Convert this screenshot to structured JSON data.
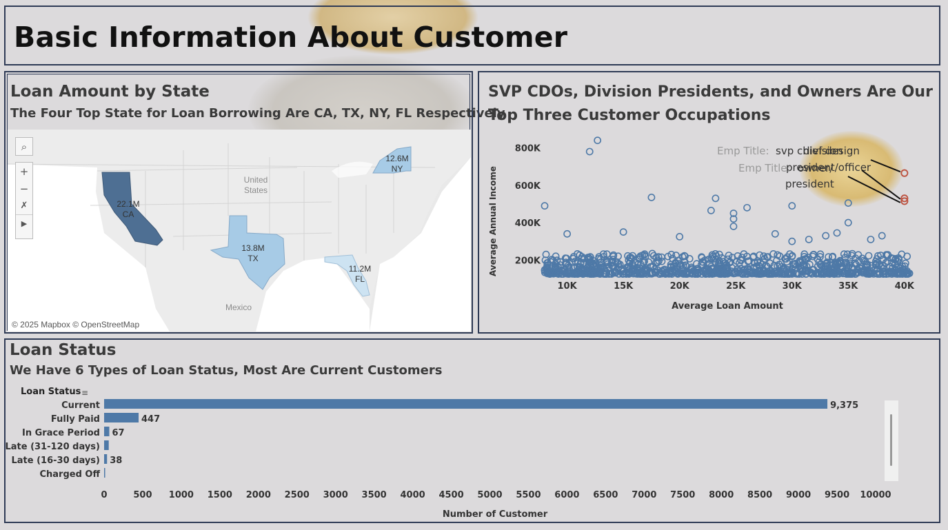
{
  "page_title": "Basic Information About Customer",
  "map": {
    "title": "Loan Amount by State",
    "subtitle": "The Four Top State for Loan Borrowing Are CA, TX, NY, FL Respectively",
    "attribution": "© 2025 Mapbox © OpenStreetMap",
    "place_labels": {
      "us": "United\nStates",
      "mexico": "Mexico"
    },
    "states": [
      {
        "code": "CA",
        "value": "22.1M",
        "color": "#4e6f93"
      },
      {
        "code": "TX",
        "value": "13.8M",
        "color": "#a7cbe6"
      },
      {
        "code": "NY",
        "value": "12.6M",
        "color": "#a7cbe6"
      },
      {
        "code": "FL",
        "value": "11.2M",
        "color": "#cde3f2"
      }
    ],
    "tools": [
      "search-icon",
      "zoom-in-icon",
      "zoom-out-icon",
      "pin-reset-icon",
      "play-icon"
    ]
  },
  "scatter": {
    "title_line1": "SVP CDOs, Division Presidents, and Owners Are Our",
    "title_line2": "Top Three Customer Occupations",
    "annotations": [
      {
        "prefix": "Emp Title:",
        "text": "svp chief design"
      },
      {
        "prefix": "Emp Title:",
        "text": "division"
      },
      {
        "prefix": "",
        "text": "president/officer"
      },
      {
        "prefix": "Emp Title:",
        "text": "owner/"
      },
      {
        "prefix": "",
        "text": "president"
      }
    ]
  },
  "status": {
    "title": "Loan Status",
    "subtitle": "We Have 6 Types of Loan Status, Most Are Current Customers",
    "dimension_header": "Loan Status"
  },
  "chart_data": [
    {
      "type": "scatter",
      "xlabel": "Average Loan Amount",
      "ylabel": "Average Annual Income",
      "xticks": [
        "10K",
        "15K",
        "20K",
        "25K",
        "30K",
        "35K",
        "40K"
      ],
      "yticks": [
        "200K",
        "400K",
        "600K",
        "800K"
      ],
      "xlim": [
        8000,
        40500
      ],
      "ylim": [
        120000,
        850000
      ],
      "series": [
        {
          "values": [
            [
              8000,
              490000
            ],
            [
              12000,
              780000
            ],
            [
              12700,
              840000
            ],
            [
              17500,
              535000
            ],
            [
              22800,
              465000
            ],
            [
              23200,
              530000
            ],
            [
              24800,
              450000
            ],
            [
              24800,
              420000
            ],
            [
              26000,
              480000
            ],
            [
              30000,
              490000
            ],
            [
              35000,
              505000
            ],
            [
              40000,
              665000
            ],
            [
              40000,
              530000
            ],
            [
              40000,
              515000
            ],
            [
              35000,
              400000
            ],
            [
              37000,
              310000
            ],
            [
              30000,
              300000
            ],
            [
              31500,
              310000
            ],
            [
              28500,
              340000
            ],
            [
              10000,
              340000
            ],
            [
              15000,
              350000
            ],
            [
              24800,
              380000
            ],
            [
              20000,
              325000
            ],
            [
              33000,
              330000
            ],
            [
              34000,
              345000
            ],
            [
              38000,
              330000
            ]
          ]
        }
      ],
      "highlighted": [
        [
          40000,
          665000
        ],
        [
          40000,
          530000
        ],
        [
          40000,
          515000
        ]
      ]
    },
    {
      "type": "bar",
      "orientation": "horizontal",
      "categories": [
        "Current",
        "Fully Paid",
        "In Grace Period",
        "Late (31-120 days)",
        "Late (16-30 days)",
        "Charged Off"
      ],
      "values": [
        9375,
        447,
        67,
        60,
        38,
        5
      ],
      "data_labels": [
        "9,375",
        "447",
        "67",
        "",
        "38",
        ""
      ],
      "xlabel": "Number of Customer",
      "xticks": [
        0,
        500,
        1000,
        1500,
        2000,
        2500,
        3000,
        3500,
        4000,
        4500,
        5000,
        5500,
        6000,
        6500,
        7000,
        7500,
        8000,
        8500,
        9000,
        9500,
        10000
      ],
      "xlim": [
        0,
        10000
      ],
      "bar_color": "#4e79a7"
    }
  ]
}
